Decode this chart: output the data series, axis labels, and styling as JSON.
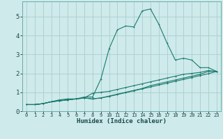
{
  "title": "",
  "xlabel": "Humidex (Indice chaleur)",
  "ylabel": "",
  "bg_color": "#ceeaea",
  "line_color": "#1a7a6e",
  "grid_color": "#aacece",
  "xlim": [
    -0.5,
    23.5
  ],
  "ylim": [
    0,
    5.8
  ],
  "xticks": [
    0,
    1,
    2,
    3,
    4,
    5,
    6,
    7,
    8,
    9,
    10,
    11,
    12,
    13,
    14,
    15,
    16,
    17,
    18,
    19,
    20,
    21,
    22,
    23
  ],
  "yticks": [
    0,
    1,
    2,
    3,
    4,
    5
  ],
  "series": [
    {
      "x": [
        0,
        1,
        2,
        3,
        4,
        5,
        6,
        7,
        8,
        9,
        10,
        11,
        12,
        13,
        14,
        15,
        16,
        17,
        18,
        19,
        20,
        21,
        22,
        23
      ],
      "y": [
        0.35,
        0.35,
        0.4,
        0.5,
        0.6,
        0.65,
        0.65,
        0.75,
        0.75,
        1.7,
        3.3,
        4.3,
        4.5,
        4.45,
        5.3,
        5.4,
        4.6,
        3.6,
        2.7,
        2.8,
        2.7,
        2.3,
        2.3,
        2.1
      ]
    },
    {
      "x": [
        0,
        1,
        2,
        3,
        4,
        5,
        6,
        7,
        8,
        9,
        10,
        11,
        12,
        13,
        14,
        15,
        16,
        17,
        18,
        19,
        20,
        21,
        22,
        23
      ],
      "y": [
        0.35,
        0.35,
        0.4,
        0.5,
        0.55,
        0.6,
        0.65,
        0.7,
        0.65,
        0.7,
        0.8,
        0.9,
        1.0,
        1.1,
        1.2,
        1.35,
        1.45,
        1.55,
        1.65,
        1.75,
        1.85,
        1.95,
        2.1,
        2.1
      ]
    },
    {
      "x": [
        0,
        1,
        2,
        3,
        4,
        5,
        6,
        7,
        8,
        9,
        10,
        11,
        12,
        13,
        14,
        15,
        16,
        17,
        18,
        19,
        20,
        21,
        22,
        23
      ],
      "y": [
        0.35,
        0.35,
        0.4,
        0.5,
        0.55,
        0.6,
        0.65,
        0.7,
        0.95,
        1.0,
        1.05,
        1.15,
        1.25,
        1.35,
        1.45,
        1.55,
        1.65,
        1.75,
        1.85,
        1.95,
        2.0,
        2.05,
        2.15,
        2.1
      ]
    },
    {
      "x": [
        0,
        1,
        2,
        3,
        4,
        5,
        6,
        7,
        8,
        9,
        10,
        11,
        12,
        13,
        14,
        15,
        16,
        17,
        18,
        19,
        20,
        21,
        22,
        23
      ],
      "y": [
        0.35,
        0.35,
        0.4,
        0.5,
        0.55,
        0.6,
        0.65,
        0.7,
        0.65,
        0.7,
        0.78,
        0.88,
        0.98,
        1.08,
        1.18,
        1.28,
        1.38,
        1.48,
        1.58,
        1.68,
        1.78,
        1.88,
        1.98,
        2.1
      ]
    }
  ]
}
